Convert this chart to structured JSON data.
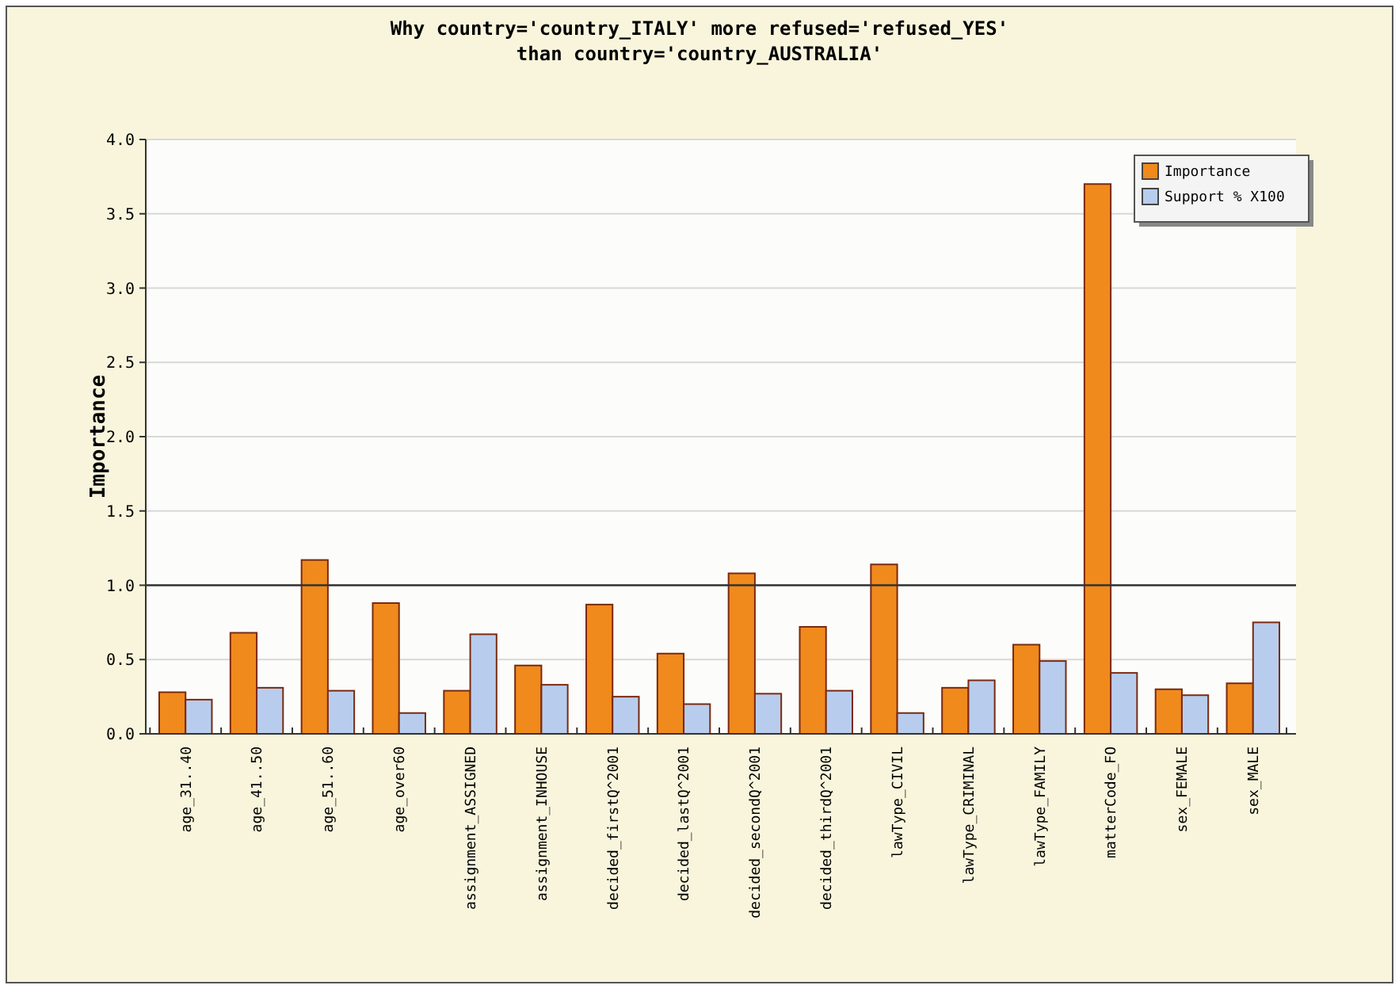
{
  "chart_data": {
    "type": "bar",
    "title": "Why country='country_ITALY' more refused='refused_YES'\nthan country='country_AUSTRALIA'",
    "ylabel": "Importance",
    "categories": [
      "age_31..40",
      "age_41..50",
      "age_51..60",
      "age_over60",
      "assignment_ASSIGNED",
      "assignment_INHOUSE",
      "decided_firstQ^2001",
      "decided_lastQ^2001",
      "decided_secondQ^2001",
      "decided_thirdQ^2001",
      "lawType_CIVIL",
      "lawType_CRIMINAL",
      "lawType_FAMILY",
      "matterCode_FO",
      "sex_FEMALE",
      "sex_MALE"
    ],
    "series": [
      {
        "name": "Importance",
        "color": "#f08a1c",
        "values": [
          0.28,
          0.68,
          1.17,
          0.88,
          0.29,
          0.46,
          0.87,
          0.54,
          1.08,
          0.72,
          1.14,
          0.31,
          0.6,
          3.7,
          0.3,
          0.34
        ]
      },
      {
        "name": "Support % X100",
        "color": "#b8cdee",
        "values": [
          0.23,
          0.31,
          0.29,
          0.14,
          0.67,
          0.33,
          0.25,
          0.2,
          0.27,
          0.29,
          0.14,
          0.36,
          0.49,
          0.41,
          0.26,
          0.75
        ]
      }
    ],
    "ylim": [
      0,
      4
    ],
    "yticks": [
      {
        "value": 0,
        "label": "0.0"
      },
      {
        "value": 0.5,
        "label": "0.5"
      },
      {
        "value": 1,
        "label": "1.0"
      },
      {
        "value": 1.5,
        "label": "1.5"
      },
      {
        "value": 2,
        "label": "2.0"
      },
      {
        "value": 2.5,
        "label": "2.5"
      },
      {
        "value": 3,
        "label": "3.0"
      },
      {
        "value": 3.5,
        "label": "3.5"
      },
      {
        "value": 4,
        "label": "4.0"
      }
    ],
    "grid": "y",
    "legend": "top right",
    "ref_lines": [
      {
        "axis": "y",
        "value": 1,
        "color": "#333333"
      }
    ]
  }
}
